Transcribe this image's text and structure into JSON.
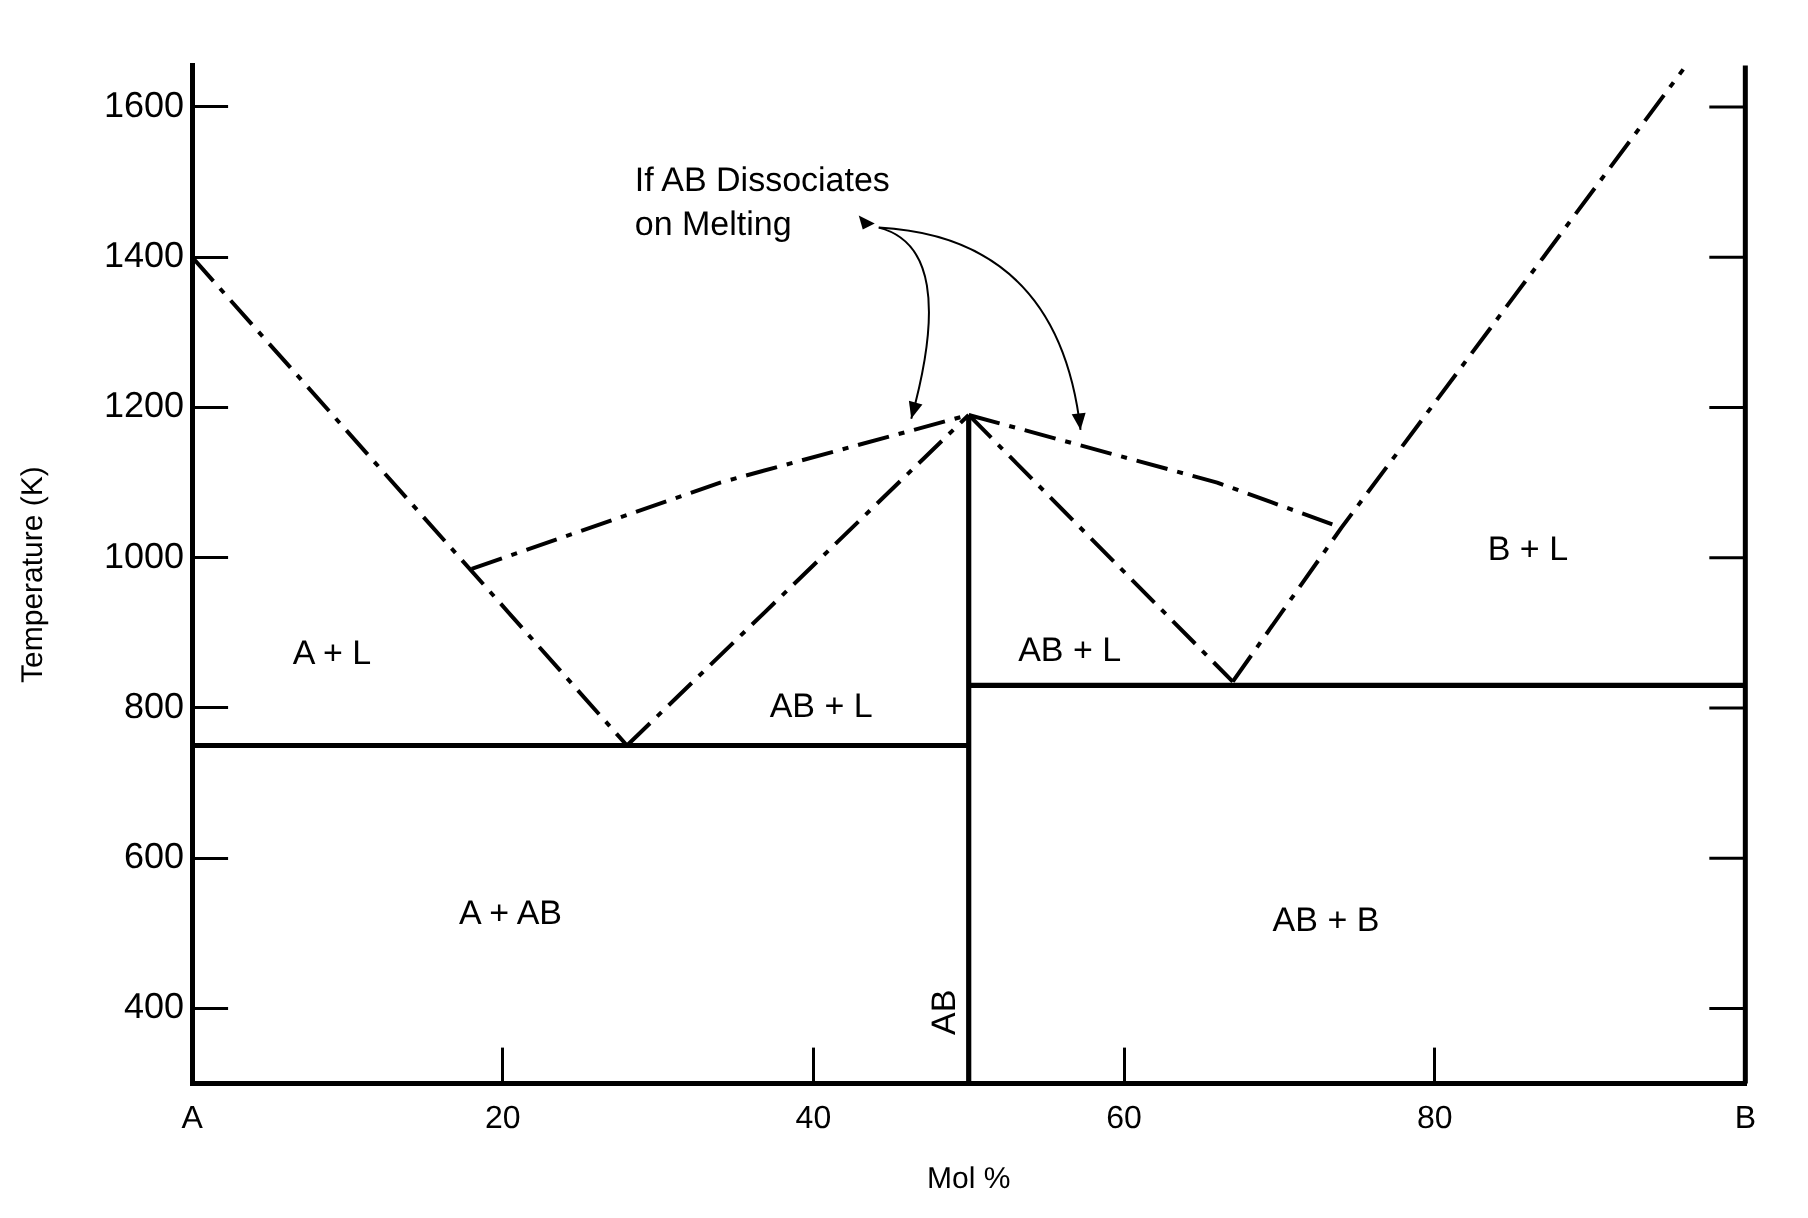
{
  "chart_data": {
    "type": "line",
    "xlabel": "Mol %",
    "ylabel": "Temperature (K)",
    "xlim": [
      0,
      100
    ],
    "ylim": [
      300,
      1655
    ],
    "xticks": [
      {
        "value": 0,
        "label": "A"
      },
      20,
      40,
      60,
      80,
      {
        "value": 100,
        "label": "B"
      }
    ],
    "yticks": [
      400,
      600,
      800,
      1000,
      1200,
      1400,
      1600
    ],
    "grid": false,
    "legend": false,
    "marker": "none",
    "series": [
      {
        "color": "#000000",
        "line_style": "dashed",
        "x": [
          0,
          28
        ],
        "values": [
          1400,
          750
        ]
      },
      {
        "color": "#000000",
        "line_style": "dashed",
        "x": [
          28,
          50
        ],
        "values": [
          750,
          1190
        ]
      },
      {
        "color": "#000000",
        "line_style": "dashed",
        "x": [
          50,
          67
        ],
        "values": [
          1190,
          835
        ]
      },
      {
        "color": "#000000",
        "line_style": "dashed",
        "x": [
          67,
          74,
          87,
          96
        ],
        "values": [
          835,
          1040,
          1400,
          1650
        ]
      },
      {
        "color": "#000000",
        "line_style": "dashed",
        "x": [
          18,
          34,
          50
        ],
        "values": [
          985,
          1100,
          1190
        ]
      },
      {
        "color": "#000000",
        "line_style": "dashed",
        "x": [
          50,
          66,
          74
        ],
        "values": [
          1190,
          1100,
          1040
        ]
      },
      {
        "color": "#000000",
        "line_style": "solid",
        "x": [
          0,
          50
        ],
        "values": [
          750,
          750
        ]
      },
      {
        "color": "#000000",
        "line_style": "solid",
        "x": [
          50,
          50
        ],
        "values": [
          300,
          1190
        ]
      },
      {
        "color": "#000000",
        "line_style": "solid",
        "x": [
          50,
          100
        ],
        "values": [
          830,
          830
        ]
      }
    ],
    "annotations": [
      "If AB Dissociates\non Melting",
      "A + L",
      "AB + L",
      "AB + L",
      "B + L",
      "A + AB",
      "AB + B",
      "AB"
    ]
  }
}
